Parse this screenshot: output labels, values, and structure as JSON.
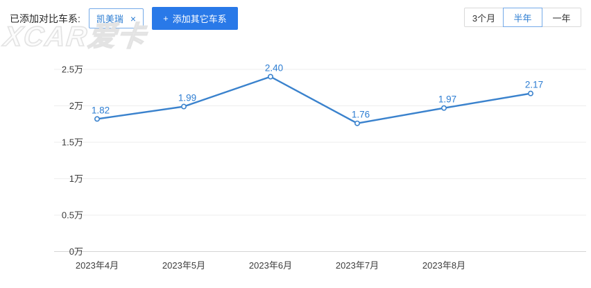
{
  "header": {
    "added_label": "已添加对比车系:",
    "series_tag": {
      "name": "凯美瑞",
      "close_icon": "×"
    },
    "add_button": {
      "plus_icon": "+",
      "label": "添加其它车系"
    },
    "periods": [
      {
        "label": "3个月",
        "active": false
      },
      {
        "label": "半年",
        "active": true
      },
      {
        "label": "一年",
        "active": false
      }
    ]
  },
  "watermark": {
    "text": "XCAR爱卡"
  },
  "chart_data": {
    "type": "line",
    "title": "",
    "series_name": "凯美瑞",
    "categories": [
      "2023年4月",
      "2023年5月",
      "2023年6月",
      "2023年7月",
      "2023年8月",
      ""
    ],
    "values": [
      1.82,
      1.99,
      2.4,
      1.76,
      1.97,
      2.17
    ],
    "point_labels": [
      "1.82",
      "1.99",
      "2.40",
      "1.76",
      "1.97",
      "2.17"
    ],
    "unit": "万",
    "xlabel": "",
    "ylabel": "",
    "ylim": [
      0,
      2.5
    ],
    "yticks": [
      {
        "value": 0,
        "label": "0万"
      },
      {
        "value": 0.5,
        "label": "0.5万"
      },
      {
        "value": 1,
        "label": "1万"
      },
      {
        "value": 1.5,
        "label": "1.5万"
      },
      {
        "value": 2,
        "label": "2万"
      },
      {
        "value": 2.5,
        "label": "2.5万"
      }
    ],
    "grid": true,
    "legend": "none",
    "colors": {
      "line": "#3a82cd",
      "label": "#2d7dd2",
      "grid": "#ededed",
      "axis": "#d4d4d4",
      "tick_text": "#3c3c3c"
    }
  }
}
